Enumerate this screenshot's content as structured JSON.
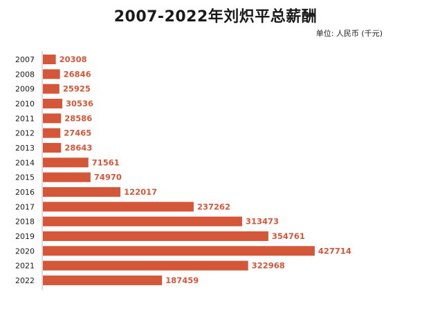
{
  "title": "2007-2022年刘炽平总薪酬",
  "unit_label": "单位: 人民币 (千元)",
  "colors": {
    "bar": "#d4573a",
    "value_text": "#d4573a",
    "axis": "#bbbbbb",
    "label_text": "#1a1a1a"
  },
  "chart_data": {
    "type": "bar",
    "orientation": "horizontal",
    "title": "2007-2022年刘炽平总薪酬",
    "unit": "单位: 人民币 (千元)",
    "categories": [
      "2007",
      "2008",
      "2009",
      "2010",
      "2011",
      "2012",
      "2013",
      "2014",
      "2015",
      "2016",
      "2017",
      "2018",
      "2019",
      "2020",
      "2021",
      "2022"
    ],
    "values": [
      20308,
      26846,
      25925,
      30536,
      28586,
      27465,
      28643,
      71561,
      74970,
      122017,
      237262,
      313473,
      354761,
      427714,
      322968,
      187459
    ],
    "xlim": [
      0,
      455000
    ],
    "grid": false,
    "legend": "none"
  }
}
